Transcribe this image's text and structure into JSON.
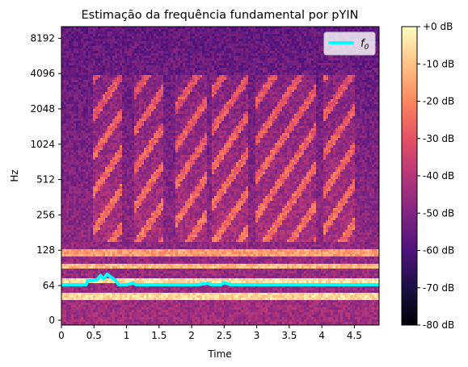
{
  "chart_data": {
    "type": "heatmap",
    "title": "Estimação da frequência fundamental por pYIN",
    "xlabel": "Time",
    "ylabel": "Hz",
    "xlim": [
      0,
      4.88
    ],
    "yscale": "symlog",
    "x_ticks": [
      0,
      0.5,
      1,
      1.5,
      2,
      2.5,
      3,
      3.5,
      4,
      4.5
    ],
    "x_tick_labels": [
      "0",
      "0.5",
      "1",
      "1.5",
      "2",
      "2.5",
      "3",
      "3.5",
      "4",
      "4.5"
    ],
    "y_ticks": [
      0,
      64,
      128,
      256,
      512,
      1024,
      2048,
      4096,
      8192
    ],
    "y_tick_labels": [
      "0",
      "64",
      "128",
      "256",
      "512",
      "1024",
      "2048",
      "4096",
      "8192"
    ],
    "colorbar": {
      "colormap": "magma",
      "range_db": [
        -80,
        0
      ],
      "ticks": [
        0,
        -10,
        -20,
        -30,
        -40,
        -50,
        -60,
        -70,
        -80
      ],
      "tick_labels": [
        "+0 dB",
        "-10 dB",
        "-20 dB",
        "-30 dB",
        "-40 dB",
        "-50 dB",
        "-60 dB",
        "-70 dB",
        "-80 dB"
      ]
    },
    "legend": {
      "placement": "top-right",
      "label": "f",
      "label_sub": "0",
      "color": "#00ffff"
    },
    "series": [
      {
        "values": [
          [
            0.0,
            65
          ],
          [
            0.38,
            65
          ],
          [
            0.4,
            70
          ],
          [
            0.55,
            72
          ],
          [
            0.6,
            78
          ],
          [
            0.65,
            73
          ],
          [
            0.7,
            80
          ],
          [
            0.78,
            74
          ],
          [
            0.84,
            70
          ],
          [
            0.88,
            65
          ],
          [
            0.9,
            65
          ],
          [
            1.0,
            65
          ],
          [
            1.1,
            67
          ],
          [
            1.15,
            65
          ],
          [
            1.65,
            65
          ],
          [
            1.7,
            65
          ],
          [
            2.1,
            65
          ],
          [
            2.25,
            67
          ],
          [
            2.3,
            65
          ],
          [
            2.45,
            65
          ],
          [
            2.5,
            68
          ],
          [
            2.6,
            65
          ],
          [
            2.8,
            65
          ],
          [
            2.95,
            65
          ],
          [
            3.5,
            65
          ],
          [
            4.88,
            65
          ]
        ]
      }
    ]
  }
}
